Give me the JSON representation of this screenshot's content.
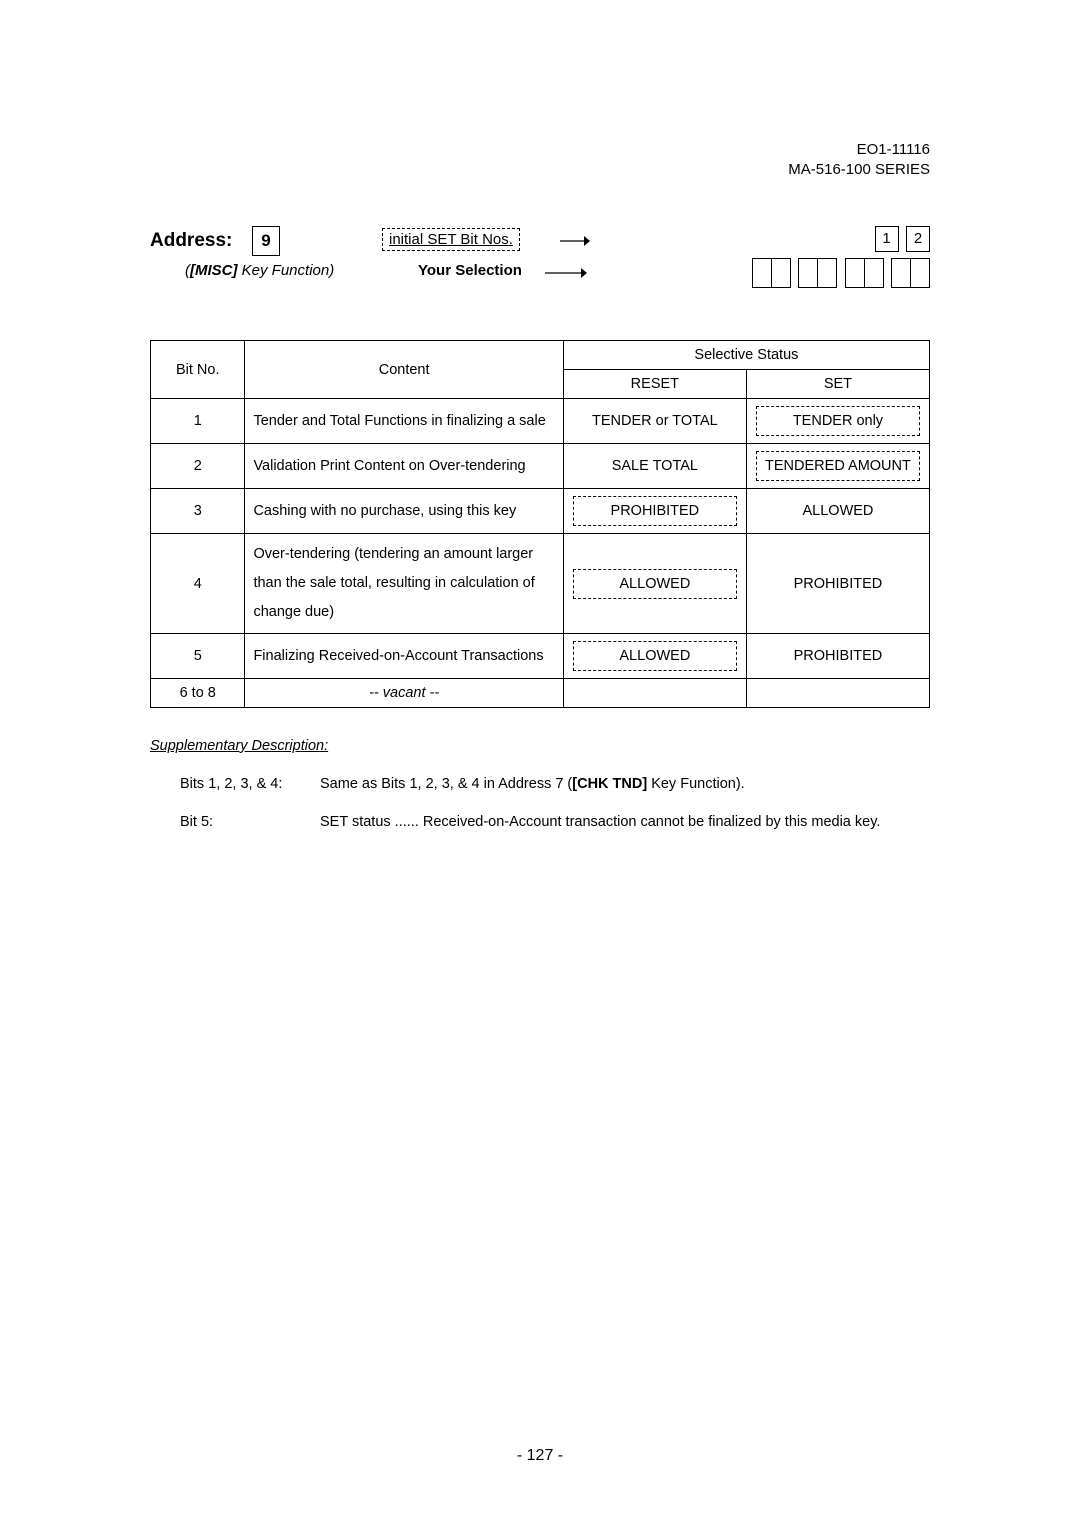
{
  "header": {
    "doc_no": "EO1-11116",
    "series": "MA-516-100 SERIES"
  },
  "address": {
    "label": "Address:",
    "value": "9",
    "misc_prefix": "(",
    "misc_key": "[MISC]",
    "misc_suffix": " Key Function)",
    "initial_set": "initial SET Bit Nos.",
    "your_selection": "Your Selection",
    "preset_boxes": [
      "1",
      "2"
    ]
  },
  "table": {
    "head": {
      "bit": "Bit No.",
      "content": "Content",
      "selective": "Selective Status",
      "reset": "RESET",
      "set": "SET"
    },
    "rows": [
      {
        "bit": "1",
        "content": "Tender and Total Functions in finalizing a sale",
        "reset": "TENDER or TOTAL",
        "set": "TENDER only",
        "reset_dashed": false,
        "set_dashed": true
      },
      {
        "bit": "2",
        "content": "Validation Print Content on Over-tendering",
        "reset": "SALE TOTAL",
        "set": "TENDERED AMOUNT",
        "reset_dashed": false,
        "set_dashed": true
      },
      {
        "bit": "3",
        "content": "Cashing with no purchase, using this key",
        "reset": "PROHIBITED",
        "set": "ALLOWED",
        "reset_dashed": true,
        "set_dashed": false
      },
      {
        "bit": "4",
        "content": "Over-tendering (tendering an amount larger than the sale total, resulting in calculation of change due)",
        "reset": "ALLOWED",
        "set": "PROHIBITED",
        "reset_dashed": true,
        "set_dashed": false
      },
      {
        "bit": "5",
        "content": "Finalizing Received-on-Account Transactions",
        "reset": "ALLOWED",
        "set": "PROHIBITED",
        "reset_dashed": true,
        "set_dashed": false
      },
      {
        "bit": "6 to 8",
        "content": "-- vacant --",
        "reset": "",
        "set": "",
        "reset_dashed": false,
        "set_dashed": false,
        "vacant": true
      }
    ]
  },
  "supp": {
    "title": "Supplementary Description:",
    "items": [
      {
        "label": "Bits 1, 2, 3, & 4:",
        "text_pre": "Same as Bits 1, 2, 3, & 4 in Address 7 (",
        "text_bold": "[CHK TND]",
        "text_post": " Key Function)."
      },
      {
        "label": "Bit 5:",
        "text_pre": "SET status ...... Received-on-Account transaction cannot be finalized by this media key.",
        "text_bold": "",
        "text_post": ""
      }
    ]
  },
  "page_number": "- 127 -"
}
